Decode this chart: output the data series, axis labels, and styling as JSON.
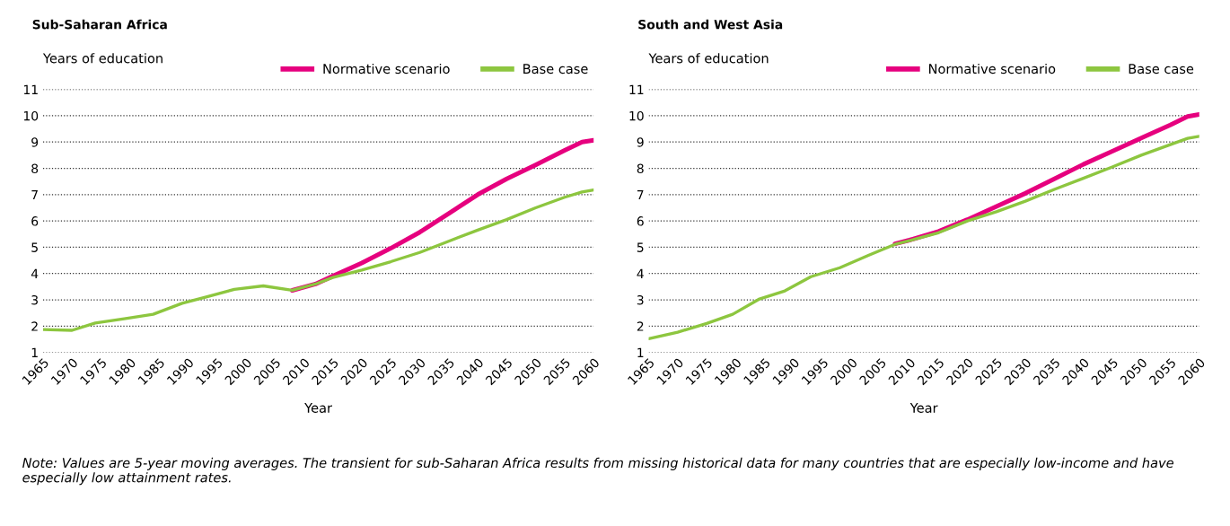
{
  "chart_data": [
    {
      "type": "line",
      "title": "Sub-Saharan Africa",
      "ylabel": "Years of education",
      "xlabel": "Year",
      "legend": "top right",
      "grid": "y",
      "line_style": "solid",
      "xlim": [
        1965,
        2060
      ],
      "xticks": [
        1965,
        1970,
        1975,
        1980,
        1985,
        1990,
        1995,
        2000,
        2005,
        2010,
        2015,
        2020,
        2025,
        2030,
        2035,
        2040,
        2045,
        2050,
        2055,
        2060
      ],
      "ylim": [
        1,
        11
      ],
      "yticks": [
        1,
        2,
        3,
        4,
        5,
        6,
        7,
        8,
        9,
        10,
        11
      ],
      "series": [
        {
          "name": "Normative scenario",
          "color": "#e6007e",
          "x": [
            2008,
            2012,
            2015,
            2020,
            2025,
            2030,
            2035,
            2040,
            2045,
            2050,
            2055,
            2058,
            2060
          ],
          "values": [
            3.36,
            3.6,
            3.9,
            4.4,
            4.96,
            5.57,
            6.28,
            7.0,
            7.6,
            8.13,
            8.68,
            9.0,
            9.07
          ]
        },
        {
          "name": "Base case",
          "color": "#8dc63f",
          "x": [
            1965,
            1970,
            1974,
            1979,
            1984,
            1989,
            1993,
            1998,
            2003,
            2008,
            2012,
            2015,
            2020,
            2025,
            2030,
            2035,
            2040,
            2045,
            2050,
            2055,
            2058,
            2060
          ],
          "values": [
            1.87,
            1.84,
            2.12,
            2.28,
            2.45,
            2.87,
            3.1,
            3.4,
            3.53,
            3.36,
            3.6,
            3.85,
            4.13,
            4.45,
            4.8,
            5.23,
            5.65,
            6.05,
            6.5,
            6.9,
            7.1,
            7.18
          ]
        }
      ]
    },
    {
      "type": "line",
      "title": "South and West Asia",
      "ylabel": "Years of education",
      "xlabel": "Year",
      "legend": "top right",
      "grid": "y",
      "line_style": "solid",
      "xlim": [
        1965,
        2060
      ],
      "xticks": [
        1965,
        1970,
        1975,
        1980,
        1985,
        1990,
        1995,
        2000,
        2005,
        2010,
        2015,
        2020,
        2025,
        2030,
        2035,
        2040,
        2045,
        2050,
        2055,
        2060
      ],
      "ylim": [
        1,
        11
      ],
      "yticks": [
        1,
        2,
        3,
        4,
        5,
        6,
        7,
        8,
        9,
        10,
        11
      ],
      "annotations": [
        "Note: Values are 5-year moving averages. The transient for sub-Saharan Africa results from missing historical data for many countries that are especially low-income and have especially low attainment rates."
      ],
      "series": [
        {
          "name": "Normative scenario",
          "color": "#e6007e",
          "x": [
            2007.5,
            2010,
            2015,
            2020,
            2025,
            2030,
            2035,
            2040,
            2045,
            2050,
            2055,
            2058,
            2060
          ],
          "values": [
            5.13,
            5.27,
            5.6,
            6.05,
            6.55,
            7.05,
            7.6,
            8.15,
            8.65,
            9.15,
            9.65,
            9.97,
            10.05
          ]
        },
        {
          "name": "Base case",
          "color": "#8dc63f",
          "x": [
            1965,
            1970,
            1975,
            1979.5,
            1984,
            1988.5,
            1993,
            1998,
            2003,
            2007.5,
            2010,
            2015,
            2020,
            2025,
            2030,
            2035,
            2040,
            2045,
            2050,
            2055,
            2058,
            2060
          ],
          "values": [
            1.52,
            1.77,
            2.1,
            2.45,
            3.02,
            3.34,
            3.88,
            4.22,
            4.7,
            5.11,
            5.25,
            5.55,
            6.0,
            6.35,
            6.75,
            7.2,
            7.62,
            8.05,
            8.5,
            8.9,
            9.14,
            9.22
          ]
        }
      ]
    }
  ]
}
